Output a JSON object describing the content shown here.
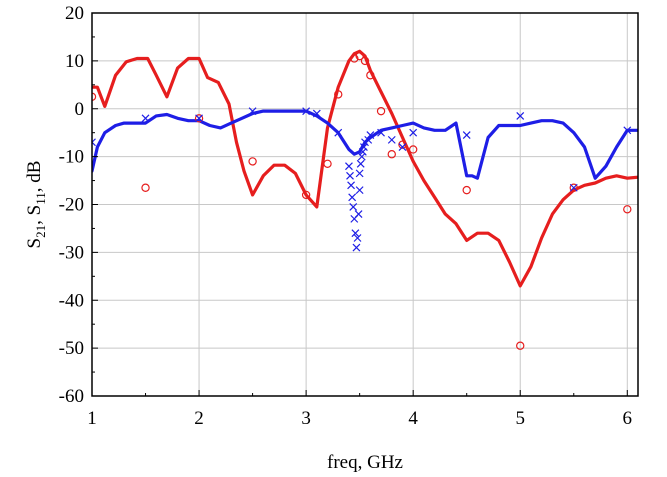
{
  "chart_data": {
    "type": "line",
    "title": "",
    "xlabel": "freq, GHz",
    "ylabel_parts": [
      "S",
      "21",
      ", S",
      "11",
      ", dB"
    ],
    "xlim": [
      1,
      6.1
    ],
    "ylim": [
      -60,
      20
    ],
    "x_ticks": [
      1,
      2,
      3,
      4,
      5,
      6
    ],
    "y_ticks": [
      20,
      10,
      0,
      -10,
      -20,
      -30,
      -40,
      -50,
      -60
    ],
    "x_tick_labels": [
      "1",
      "2",
      "3",
      "4",
      "5",
      "6"
    ],
    "y_tick_labels": [
      "20",
      "10",
      "0",
      "-10",
      "-20",
      "-30",
      "-40",
      "-50",
      "-60"
    ],
    "grid": true,
    "colors": {
      "s11": "#e61e1e",
      "s21": "#1e1ee6"
    },
    "series": [
      {
        "style": "line",
        "color": "#e61e1e",
        "x": [
          1.0,
          1.05,
          1.12,
          1.22,
          1.32,
          1.42,
          1.52,
          1.6,
          1.7,
          1.8,
          1.9,
          2.0,
          2.08,
          2.18,
          2.28,
          2.35,
          2.42,
          2.5,
          2.6,
          2.7,
          2.8,
          2.9,
          3.0,
          3.1,
          3.2,
          3.3,
          3.4,
          3.45,
          3.5,
          3.55,
          3.6,
          3.7,
          3.8,
          3.9,
          4.0,
          4.1,
          4.2,
          4.3,
          4.4,
          4.5,
          4.6,
          4.7,
          4.8,
          4.9,
          5.0,
          5.1,
          5.2,
          5.3,
          5.4,
          5.5,
          5.6,
          5.7,
          5.8,
          5.9,
          6.0,
          6.1
        ],
        "y": [
          4.5,
          4.5,
          0.5,
          7.0,
          9.8,
          10.5,
          10.5,
          7.0,
          2.5,
          8.5,
          10.5,
          10.5,
          6.5,
          5.5,
          1.0,
          -7.0,
          -13.0,
          -18.0,
          -14.0,
          -11.8,
          -11.8,
          -13.5,
          -18.0,
          -20.5,
          -4.0,
          4.5,
          10.0,
          11.5,
          12.0,
          11.0,
          8.0,
          3.5,
          -1.0,
          -6.0,
          -11.0,
          -15.0,
          -18.5,
          -22.0,
          -24.0,
          -27.5,
          -26.0,
          -26.0,
          -27.5,
          -32.0,
          -37.0,
          -33.0,
          -27.0,
          -22.0,
          -19.0,
          -17.0,
          -16.0,
          -15.5,
          -14.5,
          -14.0,
          -14.5,
          -14.3
        ]
      },
      {
        "style": "line",
        "color": "#1e1ee6",
        "x": [
          1.0,
          1.05,
          1.12,
          1.22,
          1.3,
          1.4,
          1.5,
          1.6,
          1.7,
          1.8,
          1.9,
          2.0,
          2.1,
          2.2,
          2.3,
          2.4,
          2.5,
          2.6,
          2.7,
          2.8,
          2.9,
          3.0,
          3.1,
          3.2,
          3.3,
          3.4,
          3.45,
          3.5,
          3.55,
          3.6,
          3.7,
          3.8,
          3.9,
          4.0,
          4.1,
          4.2,
          4.3,
          4.4,
          4.5,
          4.55,
          4.6,
          4.7,
          4.8,
          4.9,
          5.0,
          5.1,
          5.2,
          5.3,
          5.4,
          5.5,
          5.6,
          5.7,
          5.8,
          5.9,
          6.0,
          6.1
        ],
        "y": [
          -13.0,
          -8.0,
          -5.0,
          -3.5,
          -3.0,
          -3.0,
          -3.0,
          -1.5,
          -1.2,
          -2.0,
          -2.5,
          -2.5,
          -3.5,
          -4.0,
          -3.0,
          -2.0,
          -1.0,
          -0.5,
          -0.5,
          -0.5,
          -0.5,
          -0.5,
          -1.5,
          -3.0,
          -5.0,
          -8.5,
          -9.5,
          -9.0,
          -7.0,
          -6.0,
          -4.5,
          -4.0,
          -3.5,
          -3.0,
          -4.0,
          -4.5,
          -4.5,
          -3.0,
          -14.0,
          -14.0,
          -14.5,
          -6.0,
          -3.5,
          -3.5,
          -3.5,
          -3.0,
          -2.5,
          -2.5,
          -3.0,
          -5.0,
          -8.0,
          -14.5,
          -12.0,
          -8.0,
          -4.5,
          -4.5
        ]
      },
      {
        "style": "circle-markers",
        "color": "#e61e1e",
        "x": [
          1.0,
          1.5,
          2.0,
          2.5,
          3.0,
          3.2,
          3.3,
          3.45,
          3.5,
          3.55,
          3.6,
          3.7,
          3.8,
          3.9,
          4.0,
          4.5,
          5.0,
          5.5,
          6.0
        ],
        "y": [
          2.5,
          -16.5,
          -2.0,
          -11.0,
          -18.0,
          -11.5,
          3.0,
          10.5,
          11.0,
          10.0,
          7.0,
          -0.5,
          -9.5,
          -7.5,
          -8.5,
          -17.0,
          -49.5,
          -16.5,
          -21.0
        ]
      },
      {
        "style": "x-markers",
        "color": "#1e1ee6",
        "x": [
          1.0,
          1.5,
          2.0,
          2.5,
          3.0,
          3.1,
          3.3,
          3.4,
          3.41,
          3.42,
          3.43,
          3.44,
          3.45,
          3.46,
          3.47,
          3.48,
          3.49,
          3.5,
          3.5,
          3.51,
          3.52,
          3.53,
          3.54,
          3.55,
          3.58,
          3.6,
          3.7,
          3.8,
          3.9,
          4.0,
          4.5,
          5.0,
          5.5,
          6.0
        ],
        "y": [
          -7.0,
          -2.0,
          -2.0,
          -0.5,
          -0.5,
          -1.0,
          -5.0,
          -12.0,
          -14.0,
          -16.0,
          -18.5,
          -20.5,
          -23.0,
          -26.0,
          -29.0,
          -27.0,
          -22.0,
          -17.0,
          -13.5,
          -11.5,
          -10.0,
          -9.0,
          -8.0,
          -7.0,
          -6.5,
          -5.5,
          -5.0,
          -6.5,
          -8.0,
          -5.0,
          -5.5,
          -1.5,
          -16.5,
          -4.5
        ]
      }
    ]
  }
}
